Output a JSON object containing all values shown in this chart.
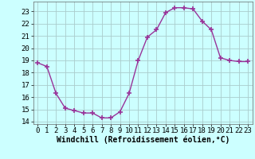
{
  "x": [
    0,
    1,
    2,
    3,
    4,
    5,
    6,
    7,
    8,
    9,
    10,
    11,
    12,
    13,
    14,
    15,
    16,
    17,
    18,
    19,
    20,
    21,
    22,
    23
  ],
  "y": [
    18.8,
    18.5,
    16.3,
    15.1,
    14.9,
    14.7,
    14.7,
    14.3,
    14.3,
    14.8,
    16.3,
    19.0,
    20.9,
    21.5,
    22.9,
    23.3,
    23.3,
    23.2,
    22.2,
    21.5,
    19.2,
    19.0,
    18.9,
    18.9
  ],
  "line_color": "#993399",
  "marker": "+",
  "marker_size": 4.0,
  "bg_color": "#ccffff",
  "grid_color": "#aacccc",
  "xlabel": "Windchill (Refroidissement éolien,°C)",
  "xlim": [
    -0.5,
    23.5
  ],
  "ylim": [
    13.8,
    23.8
  ],
  "yticks": [
    14,
    15,
    16,
    17,
    18,
    19,
    20,
    21,
    22,
    23
  ],
  "xticks": [
    0,
    1,
    2,
    3,
    4,
    5,
    6,
    7,
    8,
    9,
    10,
    11,
    12,
    13,
    14,
    15,
    16,
    17,
    18,
    19,
    20,
    21,
    22,
    23
  ],
  "xlabel_fontsize": 7,
  "tick_fontsize": 6.5
}
